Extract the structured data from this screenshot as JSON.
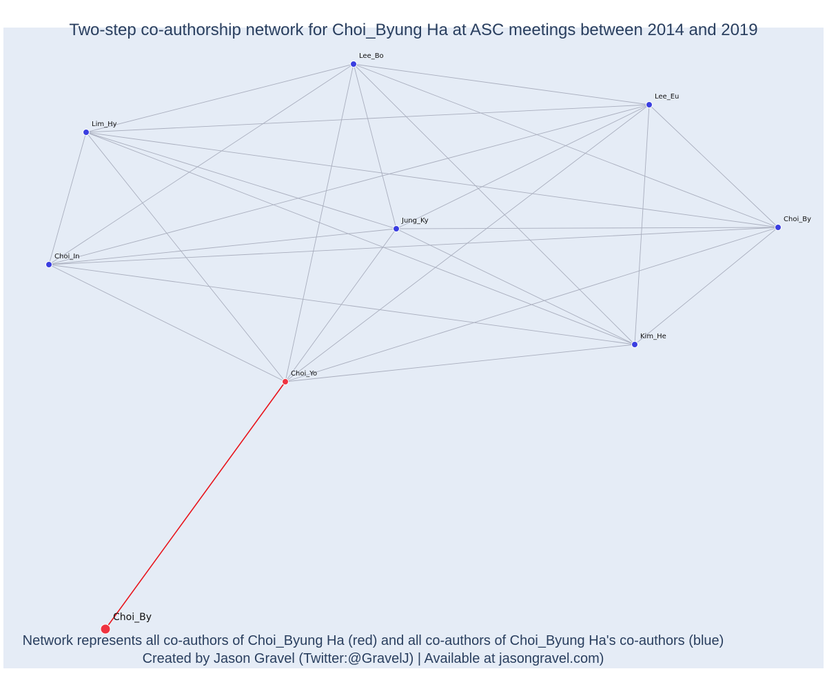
{
  "title": "Two-step co-authorship network for Choi_Byung Ha at ASC meetings between 2014 and 2019",
  "caption": {
    "line1": "Network represents all co-authors of Choi_Byung Ha (red) and all co-authors of Choi_Byung Ha's co-authors (blue)",
    "line2": "Created by Jason Gravel (Twitter:@GravelJ) | Available at jasongravel.com)"
  },
  "colors": {
    "background": "#e5ecf6",
    "edge_gray": "#a8adbd",
    "edge_red": "#e8131a",
    "node_red": "#ef3340",
    "node_blue": "#3a3ee0"
  },
  "nodes": [
    {
      "id": "focal",
      "label": "Choi_By",
      "role": "focal"
    },
    {
      "id": "choi_yo",
      "label": "Choi_Yo",
      "role": "coauthor"
    },
    {
      "id": "lee_bo",
      "label": "Lee_Bo",
      "role": "second"
    },
    {
      "id": "lee_eu",
      "label": "Lee_Eu",
      "role": "second"
    },
    {
      "id": "lim_hy",
      "label": "Lim_Hy",
      "role": "second"
    },
    {
      "id": "jung_ky",
      "label": "Jung_Ky",
      "role": "second"
    },
    {
      "id": "choi_by2",
      "label": "Choi_By",
      "role": "second"
    },
    {
      "id": "choi_in",
      "label": "Choi_In",
      "role": "second"
    },
    {
      "id": "kim_he",
      "label": "Kim_He",
      "role": "second"
    }
  ],
  "edges": [
    [
      "focal",
      "choi_yo"
    ],
    [
      "choi_yo",
      "lee_bo"
    ],
    [
      "choi_yo",
      "lee_eu"
    ],
    [
      "choi_yo",
      "lim_hy"
    ],
    [
      "choi_yo",
      "jung_ky"
    ],
    [
      "choi_yo",
      "choi_by2"
    ],
    [
      "choi_yo",
      "choi_in"
    ],
    [
      "choi_yo",
      "kim_he"
    ],
    [
      "lee_bo",
      "lee_eu"
    ],
    [
      "lee_bo",
      "lim_hy"
    ],
    [
      "lee_bo",
      "jung_ky"
    ],
    [
      "lee_bo",
      "choi_by2"
    ],
    [
      "lee_bo",
      "choi_in"
    ],
    [
      "lee_bo",
      "kim_he"
    ],
    [
      "lee_eu",
      "lim_hy"
    ],
    [
      "lee_eu",
      "jung_ky"
    ],
    [
      "lee_eu",
      "choi_by2"
    ],
    [
      "lee_eu",
      "choi_in"
    ],
    [
      "lee_eu",
      "kim_he"
    ],
    [
      "lim_hy",
      "jung_ky"
    ],
    [
      "lim_hy",
      "choi_by2"
    ],
    [
      "lim_hy",
      "choi_in"
    ],
    [
      "lim_hy",
      "kim_he"
    ],
    [
      "jung_ky",
      "choi_by2"
    ],
    [
      "jung_ky",
      "choi_in"
    ],
    [
      "jung_ky",
      "kim_he"
    ],
    [
      "choi_by2",
      "choi_in"
    ],
    [
      "choi_by2",
      "kim_he"
    ],
    [
      "choi_in",
      "kim_he"
    ]
  ]
}
